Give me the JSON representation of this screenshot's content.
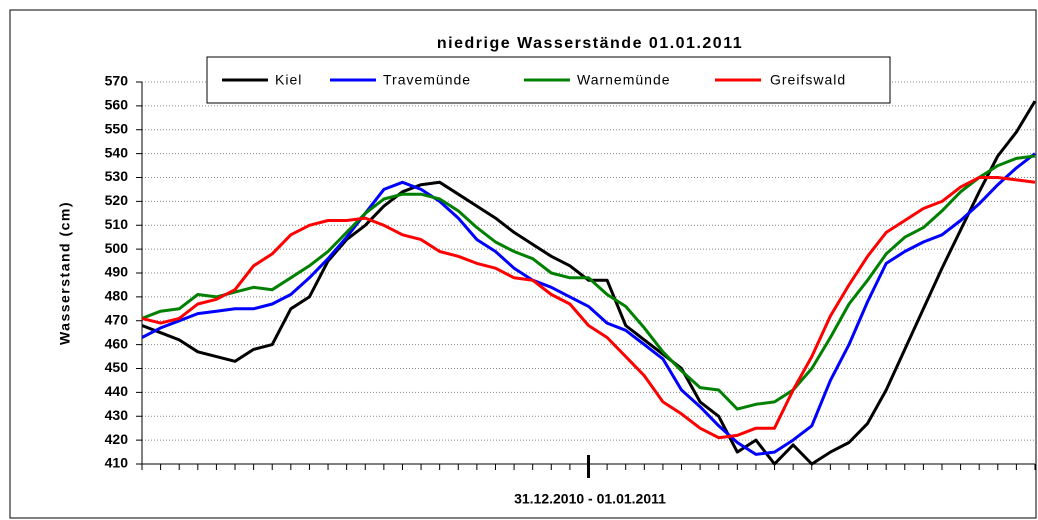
{
  "chart_data": {
    "type": "line",
    "title": "niedrige Wasserstände  01.01.2011",
    "ylabel": "Wasserstand (cm)",
    "xlabel": "31.12.2010 - 01.01.2011",
    "categories": [
      null,
      null,
      null,
      null,
      null,
      null,
      null,
      null,
      null,
      null,
      null,
      null,
      null,
      null,
      null,
      null,
      null,
      null,
      null,
      null,
      null,
      null,
      null,
      null,
      null,
      null,
      null,
      null,
      null,
      null,
      null,
      null,
      null,
      null,
      null,
      null,
      null,
      null,
      null,
      null,
      null,
      null,
      null,
      null,
      null,
      null,
      null,
      null,
      null
    ],
    "major_xtick": 24,
    "ylim": [
      410,
      570
    ],
    "yticks": [
      410,
      420,
      430,
      440,
      450,
      460,
      470,
      480,
      490,
      500,
      510,
      520,
      530,
      540,
      550,
      560,
      570
    ],
    "grid": true,
    "series": [
      {
        "name": "Kiel",
        "color": "#000000",
        "values": [
          468,
          465,
          462,
          457,
          455,
          453,
          458,
          460,
          475,
          480,
          495,
          504,
          510,
          518,
          524,
          527,
          528,
          523,
          518,
          513,
          507,
          502,
          497,
          493,
          487,
          487,
          468,
          462,
          456,
          450,
          436,
          430,
          415,
          420,
          410,
          418,
          410,
          415,
          419,
          427,
          441,
          458,
          475,
          492,
          508,
          524,
          539,
          549,
          562
        ]
      },
      {
        "name": "Travemünde",
        "color": "#0000ff",
        "values": [
          463,
          467,
          470,
          473,
          474,
          475,
          475,
          477,
          481,
          488,
          496,
          505,
          515,
          525,
          528,
          525,
          520,
          513,
          504,
          499,
          492,
          487,
          484,
          480,
          476,
          469,
          466,
          460,
          454,
          441,
          434,
          426,
          419,
          414,
          415,
          420,
          426,
          445,
          460,
          478,
          494,
          499,
          503,
          506,
          512,
          519,
          527,
          534,
          540
        ]
      },
      {
        "name": "Warnemünde",
        "color": "#008000",
        "values": [
          471,
          474,
          475,
          481,
          480,
          482,
          484,
          483,
          488,
          493,
          499,
          507,
          515,
          521,
          523,
          523,
          521,
          516,
          509,
          503,
          499,
          496,
          490,
          488,
          488,
          481,
          476,
          467,
          457,
          449,
          442,
          441,
          433,
          435,
          436,
          441,
          450,
          463,
          477,
          487,
          498,
          505,
          509,
          516,
          524,
          530,
          535,
          538,
          539
        ]
      },
      {
        "name": "Greifswald",
        "color": "#ff0000",
        "values": [
          471,
          469,
          471,
          477,
          479,
          483,
          493,
          498,
          506,
          510,
          512,
          512,
          513,
          510,
          506,
          504,
          499,
          497,
          494,
          492,
          488,
          487,
          481,
          477,
          468,
          463,
          455,
          447,
          436,
          431,
          425,
          421,
          422,
          425,
          425,
          441,
          455,
          472,
          485,
          497,
          507,
          512,
          517,
          520,
          526,
          530,
          530,
          529,
          528
        ]
      }
    ]
  }
}
